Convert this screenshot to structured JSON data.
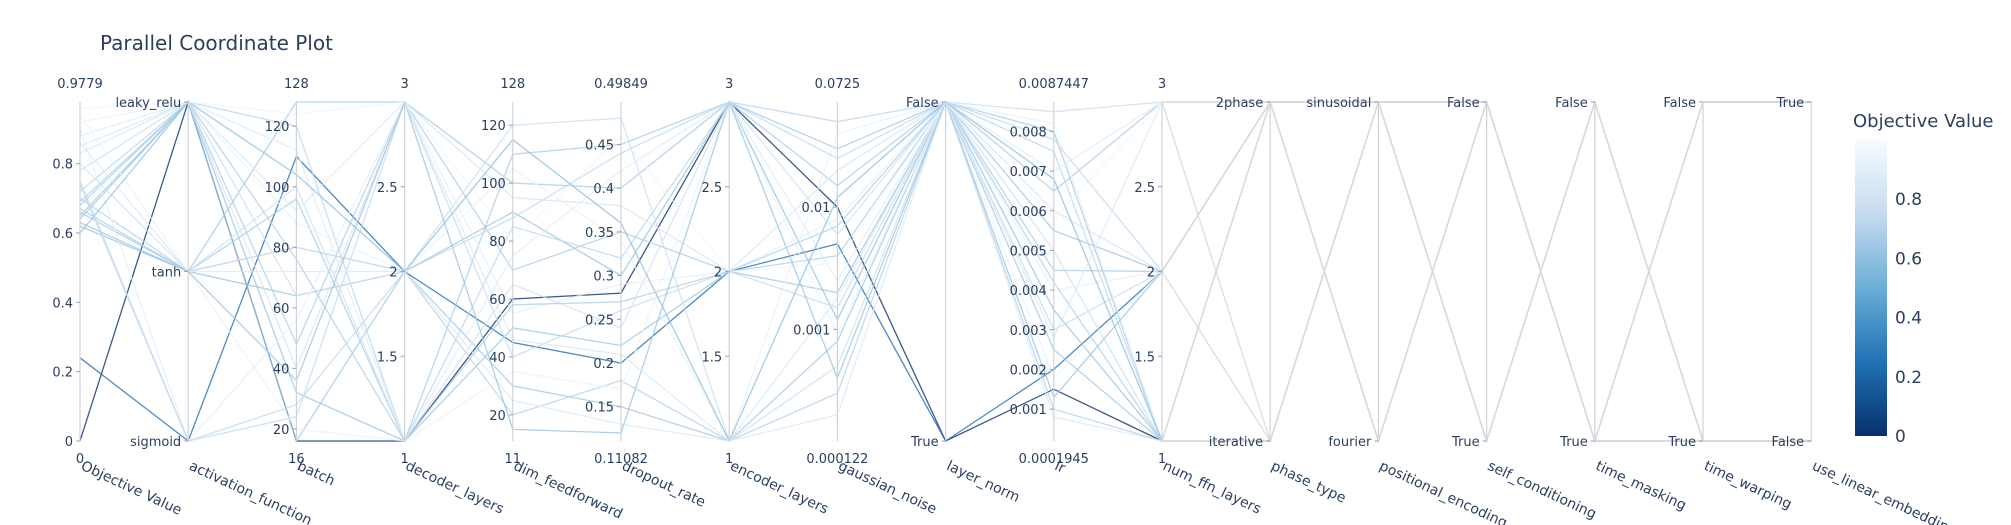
{
  "chart_data": {
    "type": "parallel_coordinates",
    "title": "Parallel Coordinate Plot",
    "colorbar": {
      "title": "Objective Value",
      "range": [
        0,
        1
      ],
      "ticks": [
        "0",
        "0.2",
        "0.4",
        "0.6",
        "0.8"
      ],
      "colorscale": [
        "#08306b",
        "#2171b5",
        "#6baed6",
        "#c6dbef",
        "#f7fbff"
      ]
    },
    "axes": [
      {
        "label": "Objective Value",
        "type": "numeric",
        "range": [
          0,
          0.9779
        ],
        "min_label": "0",
        "max_label": "0.9779",
        "ticks": [
          0,
          0.2,
          0.4,
          0.6,
          0.8
        ],
        "tick_labels": [
          "0",
          "0.2",
          "0.4",
          "0.6",
          "0.8"
        ]
      },
      {
        "label": "activation_function",
        "type": "categorical",
        "categories": [
          "sigmoid",
          "tanh",
          "leaky_relu"
        ]
      },
      {
        "label": "batch",
        "type": "numeric",
        "range": [
          16,
          128
        ],
        "min_label": "16",
        "max_label": "128",
        "ticks": [
          20,
          40,
          60,
          80,
          100,
          120
        ],
        "tick_labels": [
          "20",
          "40",
          "60",
          "80",
          "100",
          "120"
        ]
      },
      {
        "label": "decoder_layers",
        "type": "numeric",
        "range": [
          1,
          3
        ],
        "min_label": "1",
        "max_label": "3",
        "ticks": [
          1.5,
          2,
          2.5
        ],
        "tick_labels": [
          "1.5",
          "2",
          "2.5"
        ]
      },
      {
        "label": "dim_feedforward",
        "type": "numeric",
        "range": [
          11,
          128
        ],
        "min_label": "11",
        "max_label": "128",
        "ticks": [
          20,
          40,
          60,
          80,
          100,
          120
        ],
        "tick_labels": [
          "20",
          "40",
          "60",
          "80",
          "100",
          "120"
        ]
      },
      {
        "label": "dropout_rate",
        "type": "numeric",
        "range": [
          0.11082,
          0.49849
        ],
        "min_label": "0.11082",
        "max_label": "0.49849",
        "ticks": [
          0.15,
          0.2,
          0.25,
          0.3,
          0.35,
          0.4,
          0.45
        ],
        "tick_labels": [
          "0.15",
          "0.2",
          "0.25",
          "0.3",
          "0.35",
          "0.4",
          "0.45"
        ]
      },
      {
        "label": "encoder_layers",
        "type": "numeric",
        "range": [
          1,
          3
        ],
        "min_label": "1",
        "max_label": "3",
        "ticks": [
          1.5,
          2,
          2.5
        ],
        "tick_labels": [
          "1.5",
          "2",
          "2.5"
        ]
      },
      {
        "label": "gaussian_noise",
        "type": "log",
        "range": [
          0.000122,
          0.0725
        ],
        "min_label": "0.000122",
        "max_label": "0.0725",
        "ticks": [
          0.001,
          0.01
        ],
        "tick_labels": [
          "0.001",
          "0.01"
        ]
      },
      {
        "label": "layer_norm",
        "type": "categorical",
        "categories": [
          "True",
          "False"
        ]
      },
      {
        "label": "lr",
        "type": "numeric",
        "range": [
          0.0001945,
          0.0087447
        ],
        "min_label": "0.0001945",
        "max_label": "0.0087447",
        "ticks": [
          0.001,
          0.002,
          0.003,
          0.004,
          0.005,
          0.006,
          0.007,
          0.008
        ],
        "tick_labels": [
          "0.001",
          "0.002",
          "0.003",
          "0.004",
          "0.005",
          "0.006",
          "0.007",
          "0.008"
        ]
      },
      {
        "label": "num_ffn_layers",
        "type": "numeric",
        "range": [
          1,
          3
        ],
        "min_label": "1",
        "max_label": "3",
        "ticks": [
          1.5,
          2,
          2.5
        ],
        "tick_labels": [
          "1.5",
          "2",
          "2.5"
        ]
      },
      {
        "label": "phase_type",
        "type": "categorical",
        "categories": [
          "iterative",
          "2phase"
        ]
      },
      {
        "label": "positional_encoding",
        "type": "categorical",
        "categories": [
          "fourier",
          "sinusoidal"
        ]
      },
      {
        "label": "self_conditioning",
        "type": "categorical",
        "categories": [
          "True",
          "False"
        ]
      },
      {
        "label": "time_masking",
        "type": "categorical",
        "categories": [
          "True",
          "False"
        ]
      },
      {
        "label": "time_warping",
        "type": "categorical",
        "categories": [
          "True",
          "False"
        ]
      },
      {
        "label": "use_linear_embedding",
        "type": "categorical",
        "categories": [
          "False",
          "True"
        ]
      }
    ],
    "lines": [
      {
        "values": [
          0.0,
          "leaky_relu",
          16,
          1,
          60,
          0.28,
          3,
          0.01,
          "True",
          0.0015,
          1
        ]
      },
      {
        "values": [
          0.24,
          "sigmoid",
          110,
          2,
          45,
          0.2,
          2,
          0.005,
          "True",
          0.002,
          2
        ]
      },
      {
        "values": [
          0.62,
          "tanh",
          64,
          2,
          90,
          0.3,
          3,
          0.0012,
          "False",
          0.0035,
          1
        ]
      },
      {
        "values": [
          0.64,
          "leaky_relu",
          32,
          1,
          50,
          0.22,
          2,
          0.002,
          "False",
          0.0055,
          2
        ]
      },
      {
        "values": [
          0.66,
          "tanh",
          128,
          3,
          100,
          0.4,
          3,
          0.03,
          "False",
          0.008,
          1
        ]
      },
      {
        "values": [
          0.65,
          "leaky_relu",
          16,
          2,
          30,
          0.15,
          1,
          0.0008,
          "False",
          0.0025,
          1
        ]
      },
      {
        "values": [
          0.67,
          "tanh",
          96,
          1,
          110,
          0.45,
          3,
          0.015,
          "False",
          0.0065,
          3
        ]
      },
      {
        "values": [
          0.68,
          "leaky_relu",
          48,
          3,
          70,
          0.35,
          2,
          0.004,
          "False",
          0.0045,
          2
        ]
      },
      {
        "values": [
          0.7,
          "tanh",
          80,
          2,
          20,
          0.18,
          1,
          0.0003,
          "False",
          0.001,
          1
        ]
      },
      {
        "values": [
          0.72,
          "leaky_relu",
          120,
          1,
          85,
          0.32,
          3,
          0.05,
          "False",
          0.0075,
          1
        ]
      },
      {
        "values": [
          0.75,
          "sigmoid",
          24,
          3,
          40,
          0.26,
          2,
          0.0015,
          "False",
          0.003,
          2
        ]
      },
      {
        "values": [
          0.78,
          "leaky_relu",
          64,
          2,
          120,
          0.48,
          1,
          0.0005,
          "False",
          0.0085,
          3
        ]
      },
      {
        "values": [
          0.8,
          "tanh",
          100,
          1,
          65,
          0.24,
          3,
          0.006,
          "False",
          0.005,
          1
        ]
      },
      {
        "values": [
          0.83,
          "leaky_relu",
          40,
          3,
          95,
          0.38,
          2,
          0.02,
          "False",
          0.006,
          2
        ]
      },
      {
        "values": [
          0.86,
          "tanh",
          72,
          2,
          25,
          0.13,
          1,
          0.0002,
          "False",
          0.0008,
          1
        ]
      },
      {
        "values": [
          0.88,
          "leaky_relu",
          112,
          1,
          75,
          0.42,
          3,
          0.0025,
          "False",
          0.007,
          3
        ]
      },
      {
        "values": [
          0.9,
          "sigmoid",
          56,
          3,
          55,
          0.29,
          2,
          0.008,
          "False",
          0.004,
          2
        ]
      },
      {
        "values": [
          0.92,
          "leaky_relu",
          88,
          2,
          105,
          0.34,
          1,
          0.04,
          "False",
          0.0082,
          1
        ]
      },
      {
        "values": [
          0.94,
          "tanh",
          20,
          1,
          35,
          0.17,
          3,
          0.0009,
          "False",
          0.0018,
          2
        ]
      },
      {
        "values": [
          0.96,
          "leaky_relu",
          124,
          3,
          80,
          0.46,
          2,
          0.0035,
          "False",
          0.0058,
          3
        ]
      },
      {
        "values": [
          0.6,
          "leaky_relu",
          104,
          2,
          115,
          0.36,
          1,
          0.012,
          "False",
          0.0068,
          1
        ]
      },
      {
        "values": [
          0.63,
          "tanh",
          36,
          3,
          15,
          0.12,
          3,
          0.0004,
          "False",
          0.0013,
          2
        ]
      },
      {
        "values": [
          0.69,
          "leaky_relu",
          76,
          1,
          58,
          0.27,
          2,
          0.007,
          "False",
          0.0042,
          1
        ]
      },
      {
        "values": [
          0.74,
          "sigmoid",
          28,
          2,
          88,
          0.44,
          3,
          0.025,
          "False",
          0.0078,
          2
        ]
      },
      {
        "values": [
          0.85,
          "leaky_relu",
          92,
          3,
          46,
          0.21,
          1,
          0.0018,
          "False",
          0.0028,
          3
        ]
      }
    ],
    "line_tails": [
      {
        "phase_type": "2phase",
        "positional_encoding": "sinusoidal",
        "self_conditioning": "True",
        "time_masking": "False",
        "time_warping": "True",
        "use_linear_embedding": "False"
      },
      {
        "phase_type": "2phase",
        "positional_encoding": "fourier",
        "self_conditioning": "False",
        "time_masking": "True",
        "time_warping": "False",
        "use_linear_embedding": "True"
      },
      {
        "phase_type": "iterative",
        "positional_encoding": "sinusoidal",
        "self_conditioning": "False",
        "time_masking": "True",
        "time_warping": "True",
        "use_linear_embedding": "False"
      }
    ]
  }
}
